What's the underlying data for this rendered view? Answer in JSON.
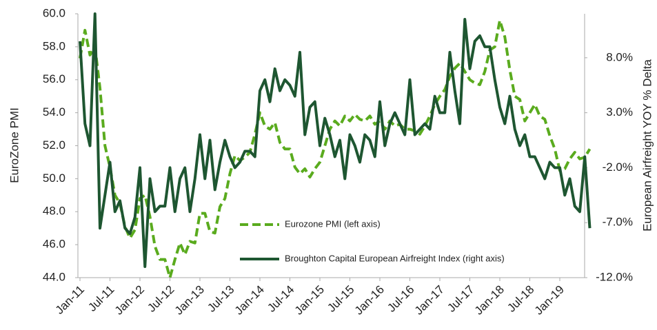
{
  "chart_data": {
    "type": "line",
    "y_label": "EuroZone PMI",
    "y2_label": "European Airfreight YOY % Delta",
    "categories": [
      "Jan-11",
      null,
      null,
      null,
      null,
      null,
      "Jul-11",
      null,
      null,
      null,
      null,
      null,
      "Jan-12",
      null,
      null,
      null,
      null,
      null,
      "Jul-12",
      null,
      null,
      null,
      null,
      null,
      "Jan-13",
      null,
      null,
      null,
      null,
      null,
      "Jul-13",
      null,
      null,
      null,
      null,
      null,
      "Jan-14",
      null,
      null,
      null,
      null,
      null,
      "Jul-14",
      null,
      null,
      null,
      null,
      null,
      "Jan-15",
      null,
      null,
      null,
      null,
      null,
      "Jul-15",
      null,
      null,
      null,
      null,
      null,
      "Jan-16",
      null,
      null,
      null,
      null,
      null,
      "Jul-16",
      null,
      null,
      null,
      null,
      null,
      "Jan-17",
      null,
      null,
      null,
      null,
      null,
      "Jul-17",
      null,
      null,
      null,
      null,
      null,
      "Jan-18",
      null,
      null,
      null,
      null,
      null,
      "Jul-18",
      null,
      null,
      null,
      null,
      null,
      "Jan-19",
      null,
      null,
      null,
      null,
      null,
      null
    ],
    "series": [
      {
        "name": "Eurozone PMI (left axis)",
        "color": "#5aab1e",
        "dash": true,
        "axis": "y",
        "values": [
          57.3,
          59.0,
          57.5,
          58.0,
          55.5,
          52.0,
          50.7,
          49.0,
          48.5,
          47.1,
          46.4,
          46.9,
          48.8,
          49.0,
          47.7,
          45.9,
          45.1,
          45.1,
          44.0,
          45.1,
          46.1,
          45.4,
          46.2,
          46.1,
          47.9,
          47.9,
          46.8,
          46.7,
          48.3,
          48.8,
          50.3,
          51.4,
          51.1,
          51.3,
          51.6,
          52.7,
          54.0,
          53.2,
          53.0,
          53.4,
          52.2,
          51.8,
          51.8,
          50.7,
          50.3,
          50.6,
          50.1,
          50.6,
          51.0,
          52.0,
          53.0,
          53.5,
          53.2,
          53.8,
          53.5,
          53.9,
          53.6,
          53.5,
          53.8,
          53.3,
          53.5,
          53.0,
          53.5,
          53.2,
          53.3,
          53.0,
          53.0,
          52.9,
          52.7,
          53.2,
          53.8,
          54.5,
          55.0,
          55.4,
          56.2,
          56.7,
          57.0,
          56.5,
          56.0,
          55.8,
          55.7,
          56.5,
          57.8,
          58.0,
          59.6,
          58.6,
          56.6,
          55.0,
          54.8,
          53.5,
          54.0,
          54.5,
          53.8,
          53.6,
          52.6,
          51.8,
          50.5,
          50.6,
          51.2,
          51.6,
          51.2,
          51.3,
          51.8
        ]
      },
      {
        "name": "Broughton Capital European Airfreight Index (right axis)",
        "color": "#1e5631",
        "dash": false,
        "axis": "y2",
        "values": [
          9.5,
          2.0,
          0.0,
          12.0,
          -7.5,
          -4.5,
          -1.5,
          -6.0,
          -5.0,
          -7.5,
          -8.0,
          -6.5,
          -2.0,
          -11.0,
          -3.0,
          -6.0,
          -5.5,
          -5.5,
          -2.0,
          -6.0,
          -3.0,
          -2.0,
          -6.0,
          -3.0,
          1.0,
          -3.0,
          0.5,
          -4.0,
          -1.5,
          0.5,
          -1.0,
          -2.0,
          -1.5,
          -0.5,
          -0.5,
          -1.0,
          5.0,
          6.0,
          4.0,
          7.0,
          5.0,
          6.0,
          5.5,
          4.5,
          8.5,
          1.0,
          3.5,
          4.0,
          0.0,
          2.5,
          1.0,
          -1.0,
          0.5,
          -3.0,
          1.0,
          0.0,
          -1.5,
          1.0,
          0.5,
          -1.0,
          4.0,
          0.0,
          2.0,
          3.0,
          2.0,
          1.0,
          6.0,
          1.0,
          1.5,
          2.0,
          1.5,
          4.5,
          3.0,
          3.0,
          8.5,
          5.0,
          2.0,
          11.5,
          7.0,
          9.5,
          10.0,
          9.0,
          9.0,
          6.0,
          3.5,
          2.0,
          4.5,
          1.5,
          0.0,
          1.0,
          -1.0,
          -1.0,
          -2.0,
          -3.0,
          -1.5,
          -2.0,
          -2.0,
          -4.5,
          -3.0,
          -5.5,
          -6.0,
          -1.0,
          -7.5
        ]
      }
    ],
    "ylim": [
      44,
      60
    ],
    "yticks": [
      {
        "value": 44,
        "label": "44.0"
      },
      {
        "value": 46,
        "label": "46.0"
      },
      {
        "value": 48,
        "label": "48.0"
      },
      {
        "value": 50,
        "label": "50.0"
      },
      {
        "value": 52,
        "label": "52.0"
      },
      {
        "value": 54,
        "label": "54.0"
      },
      {
        "value": 56,
        "label": "56.0"
      },
      {
        "value": 58,
        "label": "58.0"
      },
      {
        "value": 60,
        "label": "60.0"
      }
    ],
    "y2lim": [
      -12,
      12
    ],
    "y2ticks": [
      {
        "value": -12,
        "label": "-12.0%"
      },
      {
        "value": -7,
        "label": "-7.0%"
      },
      {
        "value": -2,
        "label": "-2.0%"
      },
      {
        "value": 3,
        "label": "3.0%"
      },
      {
        "value": 8,
        "label": "8.0%"
      }
    ],
    "grid": false
  }
}
